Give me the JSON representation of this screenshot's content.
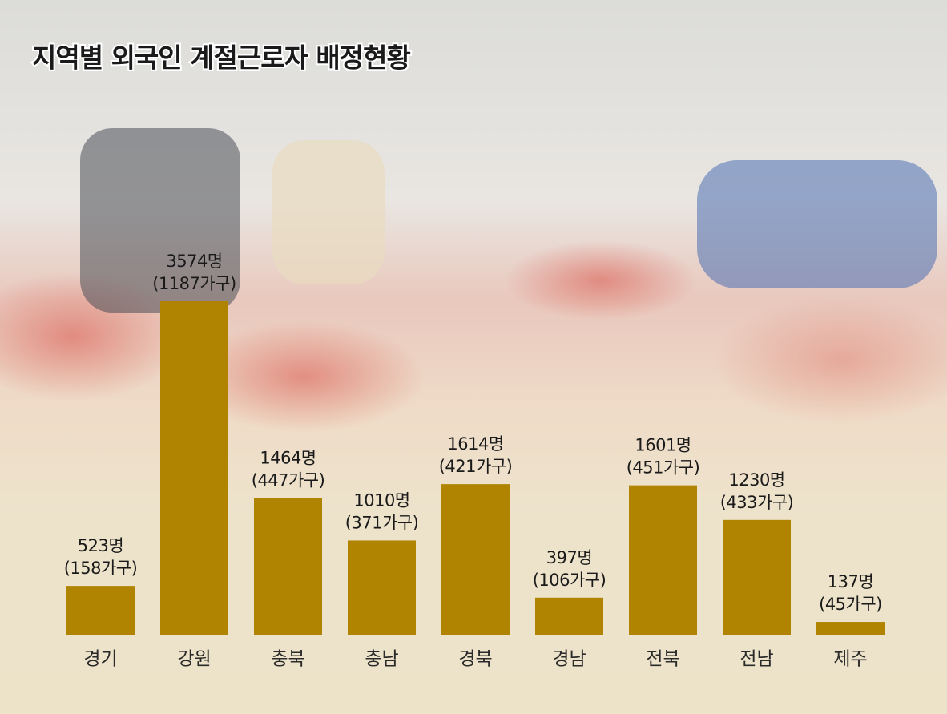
{
  "chart_data": {
    "type": "bar",
    "title": "지역별 외국인 계절근로자 배정현황",
    "categories": [
      "경기",
      "강원",
      "충북",
      "충남",
      "경북",
      "경남",
      "전북",
      "전남",
      "제주"
    ],
    "series": [
      {
        "color": "#b08400",
        "values": [
          523,
          3574,
          1464,
          1010,
          1614,
          397,
          1601,
          1230,
          137
        ],
        "value_labels": [
          "523명",
          "3574명",
          "1464명",
          "1010명",
          "1614명",
          "397명",
          "1601명",
          "1230명",
          "137명"
        ]
      },
      {
        "values": [
          158,
          1187,
          447,
          371,
          421,
          106,
          451,
          433,
          45
        ],
        "value_labels": [
          "(158가구)",
          "(1187가구)",
          "(447가구)",
          "(371가구)",
          "(421가구)",
          "(106가구)",
          "(451가구)",
          "(433가구)",
          "(45가구)"
        ]
      }
    ]
  }
}
